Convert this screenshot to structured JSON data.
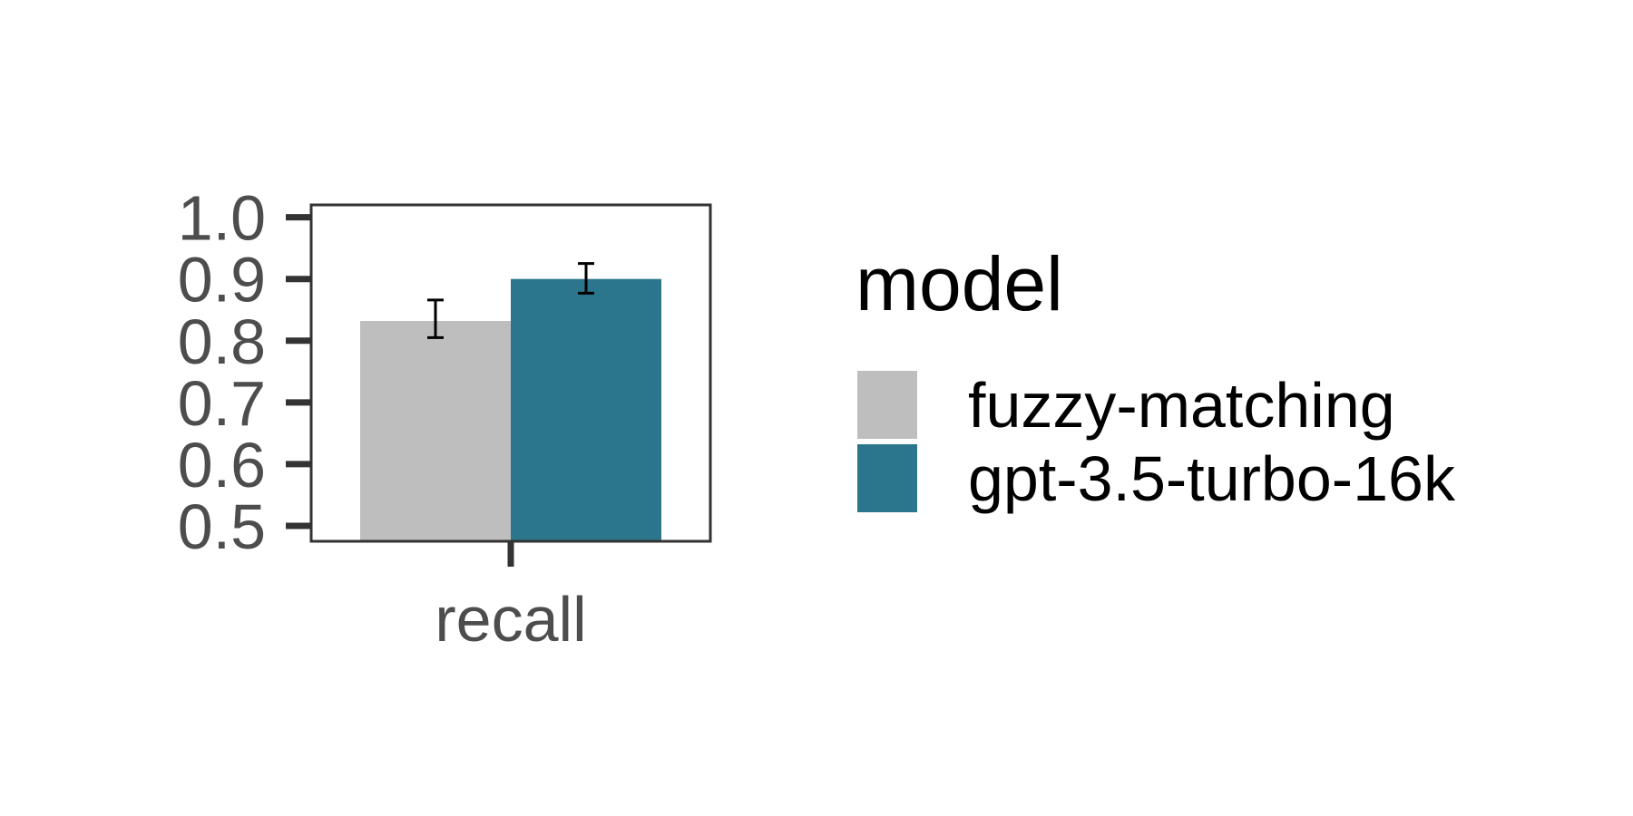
{
  "chart_data": {
    "type": "bar",
    "categories": [
      "recall"
    ],
    "series": [
      {
        "name": "fuzzy-matching",
        "color": "#bebebe",
        "values": [
          0.832
        ],
        "error_low": [
          0.805
        ],
        "error_high": [
          0.866
        ]
      },
      {
        "name": "gpt-3.5-turbo-16k",
        "color": "#2c768d",
        "values": [
          0.9
        ],
        "error_low": [
          0.877
        ],
        "error_high": [
          0.925
        ]
      }
    ],
    "title": "",
    "xlabel": "",
    "ylabel": "",
    "ylim": [
      0.475,
      1.02
    ],
    "yticks": [
      "0.5",
      "0.6",
      "0.7",
      "0.8",
      "0.9",
      "1.0"
    ],
    "grid": false,
    "legend": {
      "title": "model",
      "position": "right"
    }
  }
}
